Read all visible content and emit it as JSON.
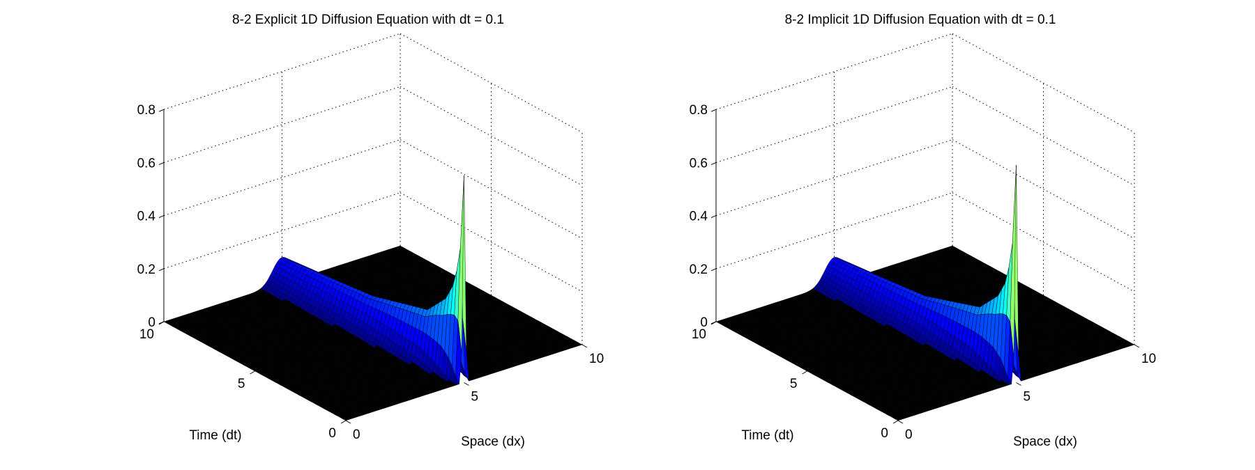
{
  "chart_data": [
    {
      "type": "surface",
      "title": "8-2 Explicit 1D Diffusion Equation with dt = 0.1",
      "xlabel": "Space (dx)",
      "ylabel": "Time (dt)",
      "zlabel": "",
      "xlim": [
        0,
        10
      ],
      "ylim": [
        0,
        10
      ],
      "zlim": [
        0,
        0.8
      ],
      "xticks": [
        "0",
        "5",
        "10"
      ],
      "yticks": [
        "0",
        "5",
        "10"
      ],
      "zticks": [
        "0",
        "0.2",
        "0.4",
        "0.6",
        "0.8"
      ],
      "grid": true,
      "colormap": "jet",
      "edge_color": "#000000",
      "ridge_space": 5,
      "ridge_peak": {
        "time": [
          0,
          0.2,
          0.5,
          1,
          2,
          5,
          10
        ],
        "value": [
          0.78,
          0.5,
          0.36,
          0.28,
          0.2,
          0.14,
          0.1
        ]
      }
    },
    {
      "type": "surface",
      "title": "8-2 Implicit 1D Diffusion Equation with dt = 0.1",
      "xlabel": "Space (dx)",
      "ylabel": "Time (dt)",
      "zlabel": "",
      "xlim": [
        0,
        10
      ],
      "ylim": [
        0,
        10
      ],
      "zlim": [
        0,
        0.8
      ],
      "xticks": [
        "0",
        "5",
        "10"
      ],
      "yticks": [
        "0",
        "5",
        "10"
      ],
      "zticks": [
        "0",
        "0.2",
        "0.4",
        "0.6",
        "0.8"
      ],
      "grid": true,
      "colormap": "jet",
      "edge_color": "#000000",
      "ridge_space": 5,
      "ridge_peak": {
        "time": [
          0,
          0.2,
          0.5,
          1,
          2,
          5,
          10
        ],
        "value": [
          0.82,
          0.52,
          0.37,
          0.29,
          0.21,
          0.14,
          0.1
        ]
      }
    }
  ]
}
